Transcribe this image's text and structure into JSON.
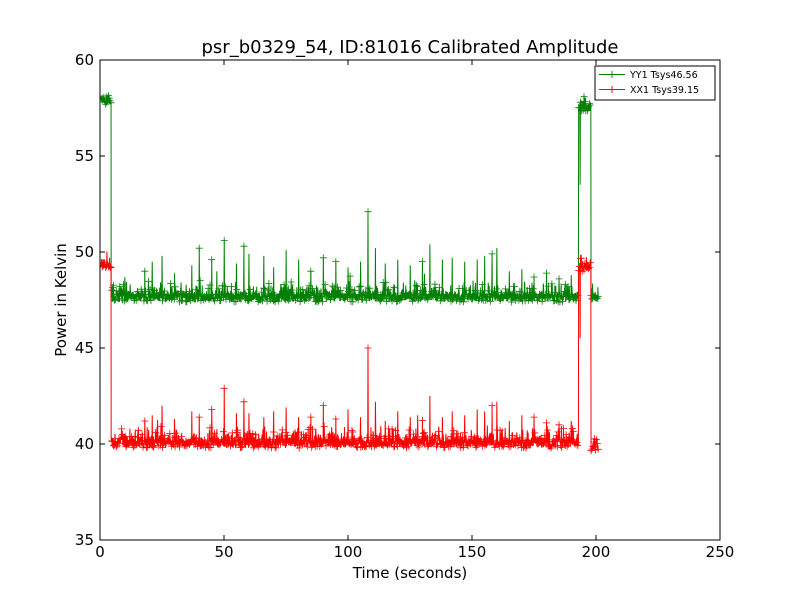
{
  "chart_data": {
    "type": "line",
    "title": "psr_b0329_54, ID:81016 Calibrated Amplitude",
    "xlabel": "Time (seconds)",
    "ylabel": "Power in Kelvin",
    "xlim": [
      0,
      250
    ],
    "ylim": [
      35,
      60
    ],
    "xticks": [
      0,
      50,
      100,
      150,
      200,
      250
    ],
    "yticks": [
      35,
      40,
      45,
      50,
      55,
      60
    ],
    "x_tick_labels": [
      "0",
      "50",
      "100",
      "150",
      "200",
      "250"
    ],
    "y_tick_labels": [
      "35",
      "40",
      "45",
      "50",
      "55",
      "60"
    ],
    "grid": false,
    "legend_position": "top-right",
    "marker": "+",
    "series": [
      {
        "name": "YY1 Tsys46.56",
        "color": "#008000",
        "segments": [
          {
            "x_range": [
              0.5,
              4.5
            ],
            "base": 57.8,
            "noise": 0.25,
            "spikes": []
          },
          {
            "x_range": [
              4.5,
              193.0
            ],
            "base": 47.6,
            "noise": 0.35,
            "spikes": [
              [
                10,
                48.7
              ],
              [
                18,
                49.0
              ],
              [
                21,
                49.5
              ],
              [
                25,
                49.8
              ],
              [
                30,
                48.9
              ],
              [
                37,
                49.3
              ],
              [
                40,
                50.2
              ],
              [
                45,
                49.6
              ],
              [
                47,
                49.0
              ],
              [
                50,
                50.6
              ],
              [
                55,
                49.4
              ],
              [
                58,
                50.3
              ],
              [
                60,
                49.9
              ],
              [
                66,
                49.8
              ],
              [
                70,
                49.2
              ],
              [
                75,
                50.1
              ],
              [
                80,
                49.6
              ],
              [
                85,
                49.0
              ],
              [
                90,
                49.7
              ],
              [
                95,
                49.5
              ],
              [
                100,
                49.2
              ],
              [
                105,
                49.5
              ],
              [
                108,
                52.1
              ],
              [
                111,
                50.2
              ],
              [
                115,
                49.4
              ],
              [
                120,
                49.6
              ],
              [
                125,
                49.3
              ],
              [
                130,
                49.5
              ],
              [
                133,
                50.4
              ],
              [
                138,
                49.6
              ],
              [
                142,
                49.7
              ],
              [
                147,
                49.5
              ],
              [
                152,
                49.6
              ],
              [
                155,
                49.8
              ],
              [
                158,
                49.9
              ],
              [
                160,
                50.2
              ],
              [
                165,
                49.0
              ],
              [
                170,
                49.1
              ],
              [
                175,
                48.7
              ],
              [
                180,
                48.9
              ],
              [
                185,
                48.6
              ],
              [
                190,
                48.8
              ]
            ]
          },
          {
            "x_range": [
              193.0,
              198.0
            ],
            "base": 57.5,
            "noise": 0.3,
            "spikes": [
              [
                193.5,
                53.5
              ]
            ]
          },
          {
            "x_range": [
              198.0,
              201.0
            ],
            "base": 47.6,
            "noise": 0.3,
            "spikes": []
          }
        ]
      },
      {
        "name": "XX1 Tsys39.15",
        "color": "#ff0000",
        "segments": [
          {
            "x_range": [
              0.5,
              4.5
            ],
            "base": 49.3,
            "noise": 0.2,
            "spikes": []
          },
          {
            "x_range": [
              4.5,
              193.0
            ],
            "base": 40.0,
            "noise": 0.35,
            "spikes": [
              [
                12,
                40.8
              ],
              [
                18,
                41.2
              ],
              [
                21,
                41.5
              ],
              [
                25,
                42.0
              ],
              [
                30,
                41.3
              ],
              [
                37,
                41.7
              ],
              [
                40,
                41.4
              ],
              [
                45,
                41.8
              ],
              [
                50,
                42.9
              ],
              [
                55,
                41.6
              ],
              [
                58,
                42.2
              ],
              [
                60,
                41.6
              ],
              [
                66,
                41.4
              ],
              [
                70,
                41.7
              ],
              [
                75,
                41.9
              ],
              [
                80,
                41.4
              ],
              [
                85,
                41.4
              ],
              [
                90,
                42.0
              ],
              [
                95,
                41.3
              ],
              [
                100,
                41.8
              ],
              [
                105,
                41.4
              ],
              [
                108,
                45.0
              ],
              [
                111,
                42.2
              ],
              [
                115,
                41.2
              ],
              [
                120,
                41.7
              ],
              [
                125,
                41.4
              ],
              [
                128,
                41.5
              ],
              [
                133,
                42.5
              ],
              [
                138,
                41.4
              ],
              [
                142,
                41.7
              ],
              [
                147,
                41.5
              ],
              [
                152,
                41.8
              ],
              [
                155,
                41.7
              ],
              [
                158,
                42.0
              ],
              [
                160,
                42.2
              ],
              [
                165,
                41.2
              ],
              [
                170,
                41.5
              ],
              [
                175,
                41.4
              ],
              [
                180,
                41.1
              ],
              [
                185,
                41.0
              ],
              [
                190,
                41.2
              ]
            ]
          },
          {
            "x_range": [
              193.0,
              198.0
            ],
            "base": 49.1,
            "noise": 0.3,
            "spikes": [
              [
                193.5,
                45.5
              ]
            ]
          },
          {
            "x_range": [
              198.0,
              201.0
            ],
            "base": 39.8,
            "noise": 0.3,
            "spikes": []
          }
        ]
      }
    ]
  }
}
